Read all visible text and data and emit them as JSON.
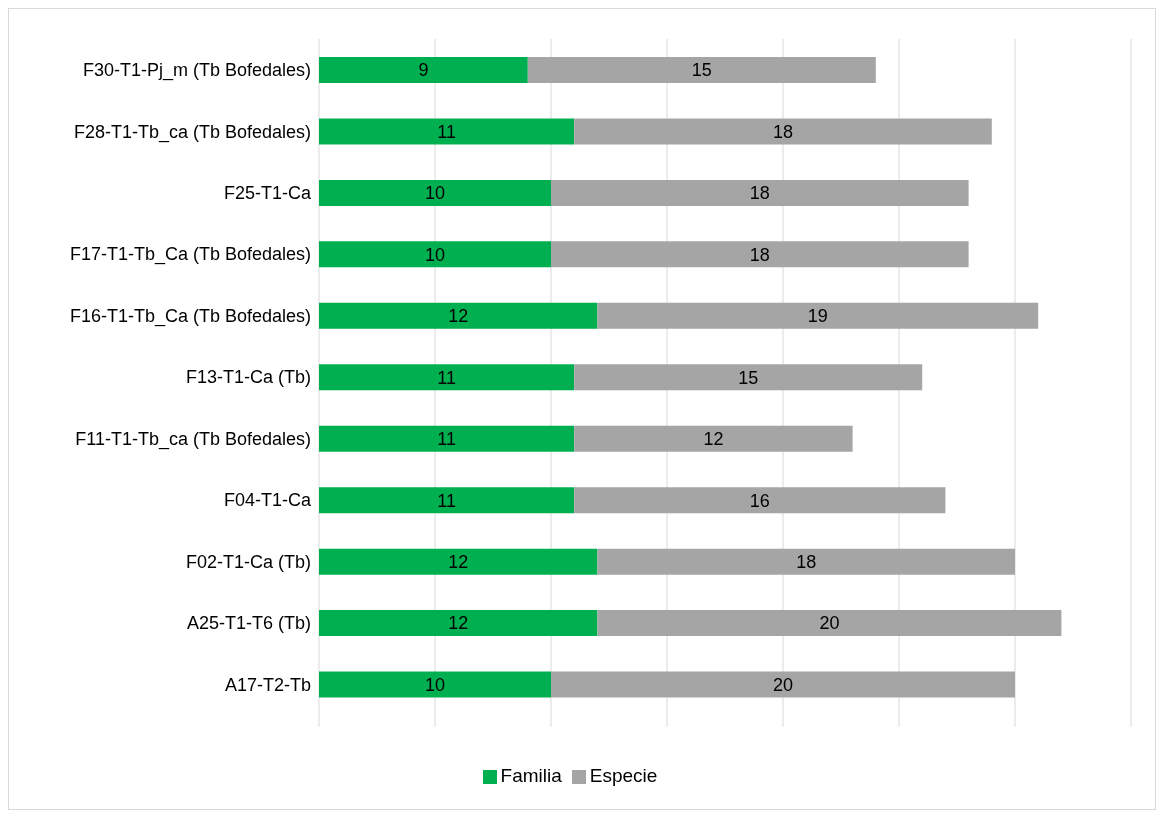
{
  "chart_data": {
    "type": "bar",
    "orientation": "horizontal",
    "stacked": true,
    "data_labels": true,
    "grid": "x",
    "legend": "bottom",
    "tick_labels": "y",
    "categories": [
      "F30-T1-Pj_m (Tb Bofedales)",
      "F28-T1-Tb_ca (Tb Bofedales)",
      "F25-T1-Ca",
      "F17-T1-Tb_Ca (Tb Bofedales)",
      "F16-T1-Tb_Ca (Tb Bofedales)",
      "F13-T1-Ca (Tb)",
      "F11-T1-Tb_ca (Tb Bofedales)",
      "F04-T1-Ca",
      "F02-T1-Ca (Tb)",
      "A25-T1-T6 (Tb)",
      "A17-T2-Tb"
    ],
    "xlim": [
      0,
      35
    ],
    "xticks": [
      {
        "value": 0,
        "label": null
      },
      {
        "value": 5,
        "label": null
      },
      {
        "value": 10,
        "label": null
      },
      {
        "value": 15,
        "label": null
      },
      {
        "value": 20,
        "label": null
      },
      {
        "value": 25,
        "label": null
      },
      {
        "value": 30,
        "label": null
      },
      {
        "value": 35,
        "label": null
      }
    ],
    "series": [
      {
        "name": "Familia",
        "color": "#00b050",
        "values": [
          9,
          11,
          10,
          10,
          12,
          11,
          11,
          11,
          12,
          12,
          10
        ]
      },
      {
        "name": "Especie",
        "color": "#a5a5a5",
        "values": [
          15,
          18,
          18,
          18,
          19,
          15,
          12,
          16,
          18,
          20,
          20
        ]
      }
    ]
  }
}
